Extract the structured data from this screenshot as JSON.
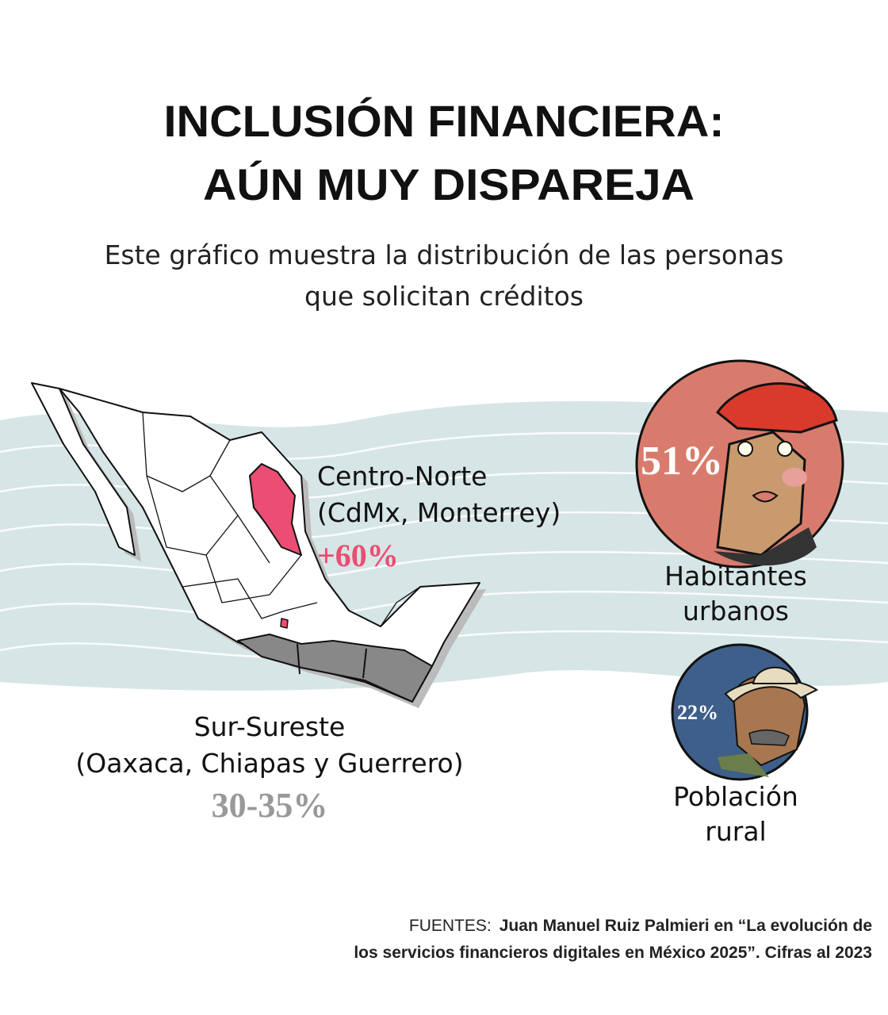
{
  "header": {
    "title_lines": [
      "INCLUSIÓN FINANCIERA:",
      "AÚN MUY DISPAREJA"
    ],
    "subtitle_lines": [
      "Este gráfico muestra la distribución de las  personas",
      "que solicitan créditos"
    ]
  },
  "regions": [
    {
      "label_lines": [
        "Centro-Norte",
        "(CdMx, Monterrey)"
      ],
      "figure": "+60%"
    },
    {
      "label_lines": [
        "Sur-Sureste",
        "(Oaxaca, Chiapas y Guerrero)"
      ],
      "figure": "30-35%"
    }
  ],
  "groups": [
    {
      "figure": "51%",
      "label_lines": [
        "Habitantes",
        "urbanos"
      ]
    },
    {
      "figure": "22%",
      "label_lines": [
        "Población",
        "rural"
      ]
    }
  ],
  "footer": {
    "label": "FUENTES:",
    "source_lines": [
      "Juan Manuel Ruiz Palmieri en “La evolución de",
      "los servicios financieros digitales en México 2025”. Cifras al 2023"
    ]
  }
}
